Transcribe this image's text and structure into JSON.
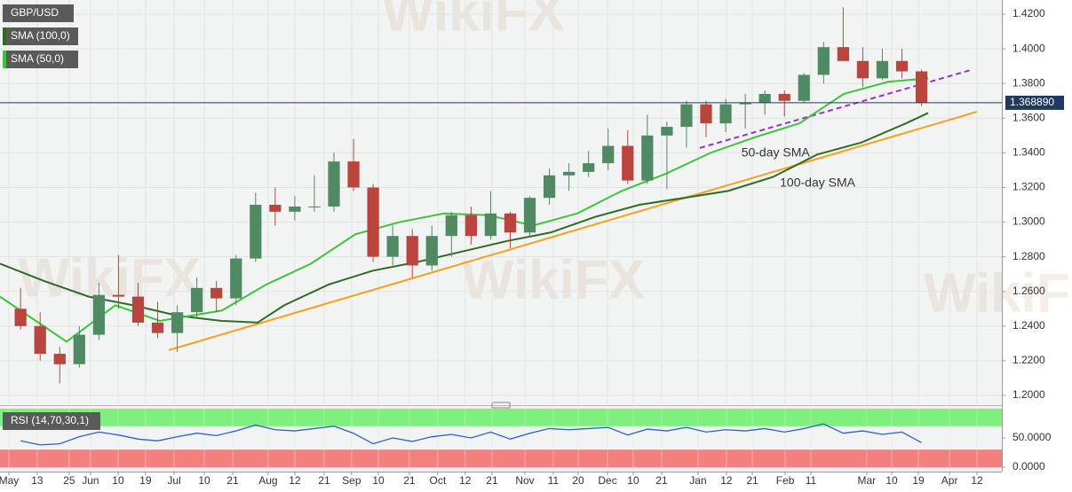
{
  "watermark": "WikiFX",
  "chart_data": [
    {
      "type": "candlestick",
      "symbol": "GBP/USD",
      "up_color": "#4f8a62",
      "down_color": "#b9453c",
      "x": [
        0.6,
        1.6,
        2.6,
        3.6,
        4.6,
        5.6,
        6.6,
        7.6,
        8.6,
        9.6,
        10.6,
        11.6,
        12.6,
        13.6,
        14.6,
        15.6,
        16.6,
        17.6,
        18.6,
        19.6,
        20.6,
        21.6,
        22.6,
        23.6,
        24.6,
        25.6,
        26.6,
        27.6,
        28.6,
        29.6,
        30.6,
        31.6,
        32.6,
        33.6,
        34.6,
        35.6,
        36.6,
        37.6,
        38.6,
        39.6,
        40.6,
        41.6,
        42.6,
        43.6,
        44.6,
        45.6,
        46.6
      ],
      "open": [
        1.25,
        1.24,
        1.224,
        1.218,
        1.235,
        1.258,
        1.257,
        1.242,
        1.236,
        1.248,
        1.262,
        1.256,
        1.279,
        1.31,
        1.306,
        1.309,
        1.309,
        1.335,
        1.32,
        1.28,
        1.292,
        1.275,
        1.292,
        1.304,
        1.292,
        1.305,
        1.294,
        1.314,
        1.327,
        1.329,
        1.334,
        1.344,
        1.324,
        1.35,
        1.355,
        1.368,
        1.357,
        1.368,
        1.369,
        1.374,
        1.37,
        1.385,
        1.401,
        1.393,
        1.383,
        1.393,
        1.387
      ],
      "high": [
        1.262,
        1.248,
        1.228,
        1.24,
        1.265,
        1.281,
        1.265,
        1.254,
        1.252,
        1.268,
        1.266,
        1.281,
        1.317,
        1.32,
        1.315,
        1.327,
        1.34,
        1.348,
        1.322,
        1.298,
        1.296,
        1.298,
        1.306,
        1.309,
        1.318,
        1.306,
        1.315,
        1.331,
        1.334,
        1.341,
        1.354,
        1.353,
        1.362,
        1.358,
        1.37,
        1.37,
        1.371,
        1.374,
        1.376,
        1.376,
        1.386,
        1.404,
        1.424,
        1.401,
        1.4,
        1.4,
        1.388
      ],
      "low": [
        1.238,
        1.22,
        1.207,
        1.216,
        1.232,
        1.25,
        1.24,
        1.233,
        1.225,
        1.245,
        1.248,
        1.252,
        1.277,
        1.298,
        1.301,
        1.306,
        1.306,
        1.318,
        1.277,
        1.275,
        1.268,
        1.272,
        1.28,
        1.287,
        1.29,
        1.285,
        1.291,
        1.31,
        1.318,
        1.326,
        1.33,
        1.322,
        1.322,
        1.319,
        1.343,
        1.349,
        1.352,
        1.354,
        1.362,
        1.361,
        1.369,
        1.38,
        1.393,
        1.378,
        1.382,
        1.383,
        1.367
      ],
      "close": [
        1.24,
        1.224,
        1.218,
        1.235,
        1.258,
        1.257,
        1.242,
        1.236,
        1.248,
        1.262,
        1.256,
        1.279,
        1.31,
        1.306,
        1.309,
        1.309,
        1.335,
        1.32,
        1.28,
        1.292,
        1.275,
        1.292,
        1.304,
        1.292,
        1.305,
        1.294,
        1.314,
        1.327,
        1.329,
        1.334,
        1.344,
        1.324,
        1.35,
        1.355,
        1.368,
        1.357,
        1.368,
        1.369,
        1.374,
        1.37,
        1.385,
        1.401,
        1.393,
        1.383,
        1.393,
        1.387,
        1.369
      ],
      "series": [
        {
          "name": "SMA (100,0)",
          "color": "#2f6b22",
          "x": [
            -0.45,
            1.81,
            4.08,
            6.35,
            8.62,
            10.88,
            12.7,
            14.06,
            16.33,
            18.59,
            20.86,
            23.13,
            25.4,
            27.66,
            29.93,
            32.2,
            34.47,
            36.73,
            39.0,
            41.27,
            43.54,
            45.8,
            46.94
          ],
          "values": [
            1.276,
            1.266,
            1.257,
            1.252,
            1.246,
            1.243,
            1.242,
            1.252,
            1.264,
            1.272,
            1.277,
            1.283,
            1.289,
            1.294,
            1.303,
            1.31,
            1.314,
            1.318,
            1.326,
            1.339,
            1.346,
            1.357,
            1.363
          ]
        },
        {
          "name": "SMA (50,0)",
          "color": "#3cc43c",
          "x": [
            -0.45,
            2.95,
            5.44,
            7.71,
            10.88,
            13.15,
            15.42,
            17.69,
            19.95,
            22.22,
            24.49,
            26.76,
            29.02,
            31.29,
            33.56,
            35.83,
            38.1,
            40.36,
            42.63,
            44.9,
            46.94
          ],
          "values": [
            1.257,
            1.231,
            1.252,
            1.243,
            1.249,
            1.264,
            1.276,
            1.293,
            1.3,
            1.305,
            1.304,
            1.298,
            1.305,
            1.318,
            1.328,
            1.34,
            1.349,
            1.357,
            1.374,
            1.381,
            1.383
          ]
        }
      ],
      "trend_lines": [
        {
          "color": "#f5a01e",
          "dashed": false,
          "x": [
            8.16,
            49.43
          ],
          "values": [
            1.2261,
            1.3637
          ]
        },
        {
          "color": "#9b30c8",
          "dashed": true,
          "x": [
            35.28,
            49.12
          ],
          "values": [
            1.3428,
            1.3878
          ]
        }
      ],
      "annotations": [
        {
          "text": "50-day SMA",
          "x": 37.4,
          "y": 1.3397,
          "color": "#2a8f2a"
        },
        {
          "text": "100-day SMA",
          "x": 39.37,
          "y": 1.3223,
          "color": "#2f6b22"
        }
      ],
      "last_price": 1.36889,
      "last_price_label": "1.368890",
      "last_price_color": "#1e3a5f",
      "xlim": [
        -0.45,
        50.7
      ],
      "ylim": [
        1.1954,
        1.4282
      ],
      "yticks": [
        {
          "value": 1.2,
          "label": "1.2000"
        },
        {
          "value": 1.22,
          "label": "1.2200"
        },
        {
          "value": 1.24,
          "label": "1.2400"
        },
        {
          "value": 1.26,
          "label": "1.2600"
        },
        {
          "value": 1.28,
          "label": "1.2800"
        },
        {
          "value": 1.3,
          "label": "1.3000"
        },
        {
          "value": 1.32,
          "label": "1.3200"
        },
        {
          "value": 1.34,
          "label": "1.3400"
        },
        {
          "value": 1.36,
          "label": "1.3600"
        },
        {
          "value": 1.38,
          "label": "1.3800"
        },
        {
          "value": 1.4,
          "label": "1.4000"
        },
        {
          "value": 1.42,
          "label": "1.4200"
        }
      ],
      "xticks": [
        {
          "value": 0,
          "label": "May"
        },
        {
          "value": 1.45,
          "label": "13"
        },
        {
          "value": 3.08,
          "label": "25"
        },
        {
          "value": 4.17,
          "label": "Jun"
        },
        {
          "value": 5.58,
          "label": "10"
        },
        {
          "value": 6.98,
          "label": "19"
        },
        {
          "value": 8.44,
          "label": "Jul"
        },
        {
          "value": 9.98,
          "label": "10"
        },
        {
          "value": 11.43,
          "label": "21"
        },
        {
          "value": 13.24,
          "label": "Aug"
        },
        {
          "value": 14.6,
          "label": "12"
        },
        {
          "value": 16.1,
          "label": "21"
        },
        {
          "value": 17.5,
          "label": "Sep"
        },
        {
          "value": 18.87,
          "label": "10"
        },
        {
          "value": 20.45,
          "label": "21"
        },
        {
          "value": 21.9,
          "label": "Oct"
        },
        {
          "value": 23.3,
          "label": "12"
        },
        {
          "value": 24.67,
          "label": "21"
        },
        {
          "value": 26.35,
          "label": "Nov"
        },
        {
          "value": 27.8,
          "label": "11"
        },
        {
          "value": 29.07,
          "label": "20"
        },
        {
          "value": 30.57,
          "label": "Dec"
        },
        {
          "value": 31.88,
          "label": "10"
        },
        {
          "value": 33.33,
          "label": "21"
        },
        {
          "value": 35.19,
          "label": "Jan"
        },
        {
          "value": 36.64,
          "label": "12"
        },
        {
          "value": 37.96,
          "label": "21"
        },
        {
          "value": 39.64,
          "label": "Feb"
        },
        {
          "value": 40.95,
          "label": "11"
        },
        {
          "value": 43.8,
          "label": "Mar"
        },
        {
          "value": 45.08,
          "label": "10"
        },
        {
          "value": 46.44,
          "label": "19"
        },
        {
          "value": 48.03,
          "label": "Apr"
        },
        {
          "value": 49.43,
          "label": "12"
        }
      ],
      "grid": true
    },
    {
      "type": "line",
      "name": "RSI (14,70,30,1)",
      "color": "#2a62c9",
      "values": [
        45,
        38,
        40,
        52,
        60,
        55,
        48,
        45,
        52,
        58,
        54,
        62,
        72,
        64,
        62,
        66,
        70,
        58,
        40,
        50,
        44,
        52,
        56,
        50,
        60,
        48,
        58,
        66,
        64,
        66,
        68,
        55,
        65,
        62,
        68,
        60,
        64,
        62,
        66,
        60,
        66,
        74,
        58,
        62,
        56,
        60,
        42
      ],
      "bands": [
        {
          "from": 70,
          "to": 100,
          "color": "#7ef07e"
        },
        {
          "from": 0,
          "to": 30,
          "color": "#f57f7f"
        }
      ],
      "ylim": [
        -7.6,
        101.5
      ],
      "yticks": [
        {
          "value": 50,
          "label": "50.0000"
        },
        {
          "value": 0,
          "label": "0.0000"
        }
      ]
    }
  ]
}
